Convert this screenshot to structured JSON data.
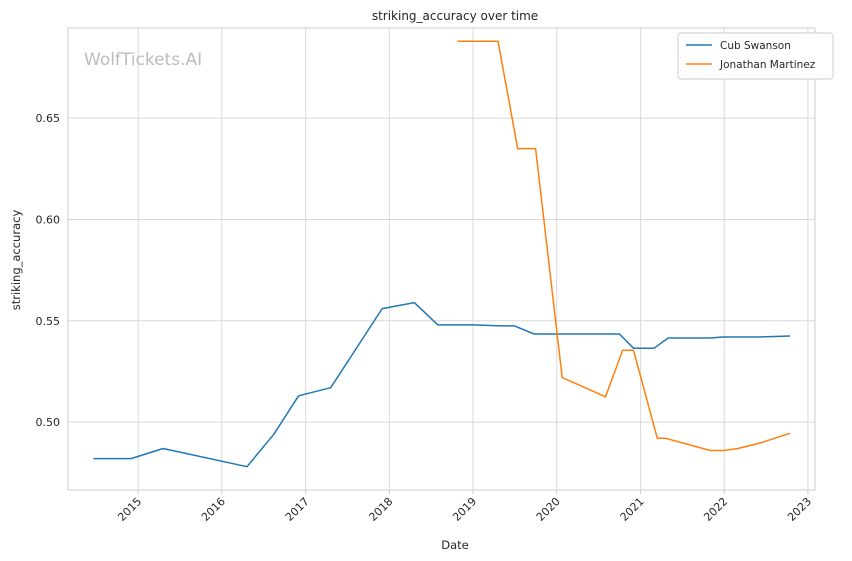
{
  "chart_data": {
    "type": "line",
    "title": "striking_accuracy over time",
    "xlabel": "Date",
    "ylabel": "striking_accuracy",
    "watermark": "WolfTickets.AI",
    "x_ticks": [
      "2015",
      "2016",
      "2017",
      "2018",
      "2019",
      "2020",
      "2021",
      "2022",
      "2023"
    ],
    "y_ticks": [
      "0.50",
      "0.55",
      "0.60",
      "0.65"
    ],
    "xlim": [
      "2014-03-01",
      "2023-02-01"
    ],
    "ylim": [
      0.4665,
      0.6945
    ],
    "grid": true,
    "legend_position": "top-right",
    "series": [
      {
        "name": "Cub Swanson",
        "color": "#1f77b4",
        "points": [
          [
            "2014-06-20",
            0.482
          ],
          [
            "2014-12-01",
            0.482
          ],
          [
            "2015-04-20",
            0.487
          ],
          [
            "2016-04-20",
            0.478
          ],
          [
            "2016-08-15",
            0.494
          ],
          [
            "2016-12-01",
            0.513
          ],
          [
            "2017-04-20",
            0.517
          ],
          [
            "2017-12-01",
            0.556
          ],
          [
            "2018-04-20",
            0.559
          ],
          [
            "2018-08-01",
            0.548
          ],
          [
            "2019-01-01",
            0.548
          ],
          [
            "2019-05-01",
            0.5475
          ],
          [
            "2019-07-01",
            0.5475
          ],
          [
            "2019-09-25",
            0.5435
          ],
          [
            "2020-10-01",
            0.5435
          ],
          [
            "2020-12-01",
            0.5365
          ],
          [
            "2021-03-01",
            0.5365
          ],
          [
            "2021-05-01",
            0.5415
          ],
          [
            "2021-11-01",
            0.5415
          ],
          [
            "2021-12-25",
            0.542
          ],
          [
            "2022-06-01",
            0.542
          ],
          [
            "2022-10-15",
            0.5425
          ]
        ]
      },
      {
        "name": "Jonathan Martinez",
        "color": "#ff7f0e",
        "points": [
          [
            "2018-10-25",
            0.688
          ],
          [
            "2019-04-20",
            0.688
          ],
          [
            "2019-07-15",
            0.635
          ],
          [
            "2019-10-01",
            0.635
          ],
          [
            "2020-01-25",
            0.522
          ],
          [
            "2020-08-01",
            0.5125
          ],
          [
            "2020-10-15",
            0.5355
          ],
          [
            "2020-12-01",
            0.5355
          ],
          [
            "2021-03-15",
            0.492
          ],
          [
            "2021-04-20",
            0.492
          ],
          [
            "2021-11-01",
            0.486
          ],
          [
            "2022-01-01",
            0.486
          ],
          [
            "2022-03-01",
            0.487
          ],
          [
            "2022-06-01",
            0.4895
          ],
          [
            "2022-10-15",
            0.4945
          ]
        ]
      }
    ]
  }
}
